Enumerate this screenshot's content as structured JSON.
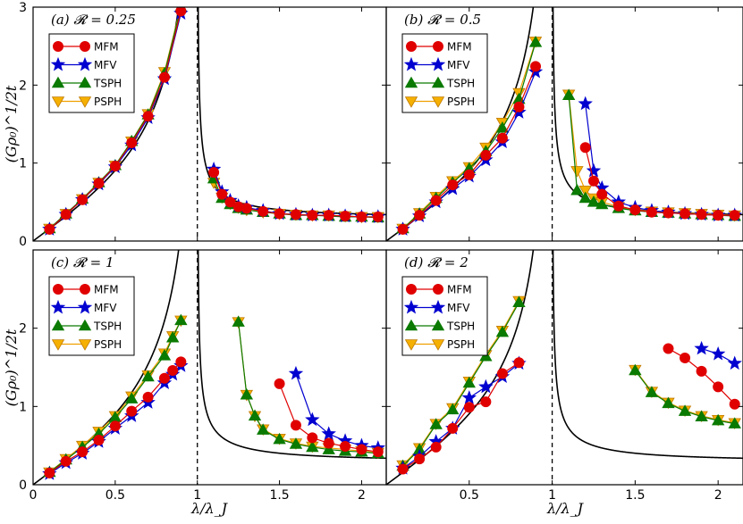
{
  "chart_data": {
    "type": "line",
    "xlabel": "λ/λ_J",
    "ylabel": "(Gρ₀)^{1/2}t",
    "xlim": [
      0,
      2.15
    ],
    "ylim": [
      0,
      3
    ],
    "x_ticks": [
      "0",
      "0.5",
      "1",
      "1.5",
      "2"
    ],
    "y_ticks": [
      "0",
      "1",
      "2",
      "3"
    ],
    "legend": [
      "MFM",
      "MFV",
      "TSPH",
      "PSPH"
    ],
    "colors": {
      "MFM": "#e00000",
      "MFV": "#0000d0",
      "TSPH": "#0a7a00",
      "PSPH": "#f0a000"
    },
    "panels": [
      {
        "label": "(a)",
        "title": "𝓡 = 0.25",
        "series": [
          {
            "name": "MFM",
            "x": [
              0.1,
              0.2,
              0.3,
              0.4,
              0.5,
              0.6,
              0.7,
              0.8,
              0.9,
              1.1,
              1.15,
              1.2,
              1.25,
              1.3,
              1.4,
              1.5,
              1.6,
              1.7,
              1.8,
              1.9,
              2.0,
              2.1
            ],
            "y": [
              0.15,
              0.34,
              0.53,
              0.74,
              0.96,
              1.26,
              1.6,
              2.1,
              2.95,
              0.88,
              0.6,
              0.5,
              0.44,
              0.42,
              0.38,
              0.35,
              0.34,
              0.33,
              0.33,
              0.32,
              0.31,
              0.31
            ]
          },
          {
            "name": "MFV",
            "x": [
              0.1,
              0.2,
              0.3,
              0.4,
              0.5,
              0.6,
              0.7,
              0.8,
              0.9,
              1.1,
              1.15,
              1.2,
              1.25,
              1.3,
              1.4,
              1.5,
              1.6,
              1.7,
              1.8,
              1.9,
              2.0,
              2.1
            ],
            "y": [
              0.15,
              0.34,
              0.53,
              0.73,
              0.95,
              1.23,
              1.58,
              2.08,
              2.92,
              0.92,
              0.63,
              0.52,
              0.45,
              0.43,
              0.39,
              0.35,
              0.34,
              0.33,
              0.33,
              0.32,
              0.31,
              0.31
            ]
          },
          {
            "name": "TSPH",
            "x": [
              0.1,
              0.2,
              0.3,
              0.4,
              0.5,
              0.6,
              0.7,
              0.8,
              0.9,
              1.1,
              1.15,
              1.2,
              1.25,
              1.3,
              1.4,
              1.5,
              1.6,
              1.7,
              1.8,
              1.9,
              2.0,
              2.1
            ],
            "y": [
              0.16,
              0.35,
              0.54,
              0.75,
              0.97,
              1.28,
              1.62,
              2.15,
              3.0,
              0.8,
              0.55,
              0.47,
              0.42,
              0.4,
              0.37,
              0.35,
              0.33,
              0.33,
              0.32,
              0.31,
              0.31,
              0.3
            ]
          },
          {
            "name": "PSPH",
            "x": [
              0.1,
              0.2,
              0.3,
              0.4,
              0.5,
              0.6,
              0.7,
              0.8,
              0.9,
              1.1,
              1.15,
              1.2,
              1.25,
              1.3,
              1.4,
              1.5,
              1.6,
              1.7,
              1.8,
              1.9,
              2.0,
              2.1
            ],
            "y": [
              0.16,
              0.35,
              0.54,
              0.75,
              0.97,
              1.28,
              1.63,
              2.17,
              3.02,
              0.75,
              0.56,
              0.48,
              0.43,
              0.4,
              0.37,
              0.35,
              0.34,
              0.33,
              0.33,
              0.32,
              0.31,
              0.31
            ]
          }
        ]
      },
      {
        "label": "(b)",
        "title": "𝓡 = 0.5",
        "series": [
          {
            "name": "MFM",
            "x": [
              0.1,
              0.2,
              0.3,
              0.4,
              0.5,
              0.6,
              0.7,
              0.8,
              0.9,
              1.2,
              1.25,
              1.3,
              1.4,
              1.5,
              1.6,
              1.7,
              1.8,
              1.9,
              2.0,
              2.1
            ],
            "y": [
              0.15,
              0.33,
              0.52,
              0.72,
              0.85,
              1.1,
              1.32,
              1.72,
              2.24,
              1.2,
              0.77,
              0.6,
              0.45,
              0.4,
              0.37,
              0.36,
              0.35,
              0.34,
              0.33,
              0.33
            ]
          },
          {
            "name": "MFV",
            "x": [
              0.1,
              0.2,
              0.3,
              0.4,
              0.5,
              0.6,
              0.7,
              0.8,
              0.9,
              1.2,
              1.25,
              1.3,
              1.4,
              1.5,
              1.6,
              1.7,
              1.8,
              1.9,
              2.0,
              2.1
            ],
            "y": [
              0.15,
              0.32,
              0.5,
              0.67,
              0.83,
              1.04,
              1.27,
              1.65,
              2.17,
              1.76,
              0.9,
              0.68,
              0.5,
              0.43,
              0.39,
              0.37,
              0.35,
              0.34,
              0.33,
              0.33
            ]
          },
          {
            "name": "TSPH",
            "x": [
              0.1,
              0.2,
              0.3,
              0.4,
              0.5,
              0.6,
              0.7,
              0.8,
              0.9,
              1.1,
              1.15,
              1.2,
              1.25,
              1.3,
              1.4,
              1.5,
              1.6,
              1.7,
              1.8,
              1.9,
              2.0,
              2.1
            ],
            "y": [
              0.16,
              0.35,
              0.55,
              0.75,
              0.93,
              1.15,
              1.45,
              1.82,
              2.55,
              1.87,
              0.65,
              0.55,
              0.5,
              0.47,
              0.42,
              0.39,
              0.37,
              0.36,
              0.35,
              0.34,
              0.33,
              0.32
            ]
          },
          {
            "name": "PSPH",
            "x": [
              0.1,
              0.2,
              0.3,
              0.4,
              0.5,
              0.6,
              0.7,
              0.8,
              0.9,
              1.1,
              1.15,
              1.2,
              1.25,
              1.3,
              1.4,
              1.5,
              1.6,
              1.7,
              1.8,
              1.9,
              2.0,
              2.1
            ],
            "y": [
              0.16,
              0.36,
              0.57,
              0.77,
              0.95,
              1.2,
              1.52,
              1.9,
              2.56,
              1.88,
              0.9,
              0.65,
              0.55,
              0.5,
              0.44,
              0.4,
              0.38,
              0.37,
              0.36,
              0.35,
              0.34,
              0.33
            ]
          }
        ]
      },
      {
        "label": "(c)",
        "title": "𝓡 = 1",
        "series": [
          {
            "name": "MFM",
            "x": [
              0.1,
              0.2,
              0.3,
              0.4,
              0.5,
              0.6,
              0.7,
              0.8,
              0.85,
              0.9,
              1.5,
              1.6,
              1.7,
              1.8,
              1.9,
              2.0,
              2.1
            ],
            "y": [
              0.15,
              0.3,
              0.42,
              0.57,
              0.75,
              0.94,
              1.12,
              1.36,
              1.46,
              1.57,
              1.29,
              0.76,
              0.6,
              0.53,
              0.49,
              0.45,
              0.42
            ]
          },
          {
            "name": "MFV",
            "x": [
              0.1,
              0.2,
              0.3,
              0.4,
              0.5,
              0.6,
              0.7,
              0.8,
              0.85,
              0.9,
              1.6,
              1.7,
              1.8,
              1.9,
              2.0,
              2.1
            ],
            "y": [
              0.14,
              0.28,
              0.4,
              0.55,
              0.72,
              0.88,
              1.05,
              1.3,
              1.41,
              1.52,
              1.42,
              0.83,
              0.65,
              0.56,
              0.5,
              0.47
            ]
          },
          {
            "name": "TSPH",
            "x": [
              0.1,
              0.2,
              0.3,
              0.4,
              0.5,
              0.6,
              0.7,
              0.8,
              0.85,
              0.9,
              1.25,
              1.3,
              1.35,
              1.4,
              1.5,
              1.6,
              1.7,
              1.8,
              1.9,
              2.0,
              2.1
            ],
            "y": [
              0.16,
              0.32,
              0.48,
              0.65,
              0.86,
              1.1,
              1.38,
              1.65,
              1.88,
              2.1,
              2.08,
              1.15,
              0.88,
              0.7,
              0.58,
              0.52,
              0.48,
              0.45,
              0.43,
              0.42,
              0.4
            ]
          },
          {
            "name": "PSPH",
            "x": [
              0.1,
              0.2,
              0.3,
              0.4,
              0.5,
              0.6,
              0.7,
              0.8,
              0.85,
              0.9,
              1.25,
              1.3,
              1.35,
              1.4,
              1.5,
              1.6,
              1.7,
              1.8,
              1.9,
              2.0,
              2.1
            ],
            "y": [
              0.16,
              0.33,
              0.5,
              0.68,
              0.88,
              1.13,
              1.4,
              1.68,
              1.9,
              2.1,
              2.08,
              1.15,
              0.88,
              0.71,
              0.59,
              0.53,
              0.49,
              0.47,
              0.45,
              0.43,
              0.41
            ]
          }
        ]
      },
      {
        "label": "(d)",
        "title": "𝓡 = 2",
        "series": [
          {
            "name": "MFM",
            "x": [
              0.1,
              0.2,
              0.3,
              0.4,
              0.5,
              0.6,
              0.7,
              0.8,
              1.7,
              1.8,
              1.9,
              2.0,
              2.1
            ],
            "y": [
              0.2,
              0.33,
              0.48,
              0.72,
              0.99,
              1.06,
              1.42,
              1.56,
              1.74,
              1.62,
              1.45,
              1.25,
              1.03
            ]
          },
          {
            "name": "MFV",
            "x": [
              0.1,
              0.2,
              0.3,
              0.4,
              0.5,
              0.6,
              0.7,
              0.8,
              1.9,
              2.0,
              2.1
            ],
            "y": [
              0.21,
              0.36,
              0.55,
              0.72,
              1.11,
              1.25,
              1.38,
              1.55,
              1.74,
              1.67,
              1.55
            ]
          },
          {
            "name": "TSPH",
            "x": [
              0.1,
              0.2,
              0.3,
              0.4,
              0.5,
              0.6,
              0.7,
              0.8,
              1.5,
              1.6,
              1.7,
              1.8,
              1.9,
              2.0,
              2.1
            ],
            "y": [
              0.24,
              0.45,
              0.77,
              0.96,
              1.3,
              1.64,
              1.95,
              2.33,
              1.46,
              1.18,
              1.04,
              0.94,
              0.87,
              0.82,
              0.78
            ]
          },
          {
            "name": "PSPH",
            "x": [
              0.1,
              0.2,
              0.3,
              0.4,
              0.5,
              0.6,
              0.7,
              0.8,
              1.5,
              1.6,
              1.7,
              1.8,
              1.9,
              2.0,
              2.1
            ],
            "y": [
              0.25,
              0.47,
              0.78,
              0.98,
              1.32,
              1.66,
              1.97,
              2.35,
              1.47,
              1.19,
              1.05,
              0.95,
              0.88,
              0.83,
              0.79
            ]
          }
        ]
      }
    ]
  }
}
